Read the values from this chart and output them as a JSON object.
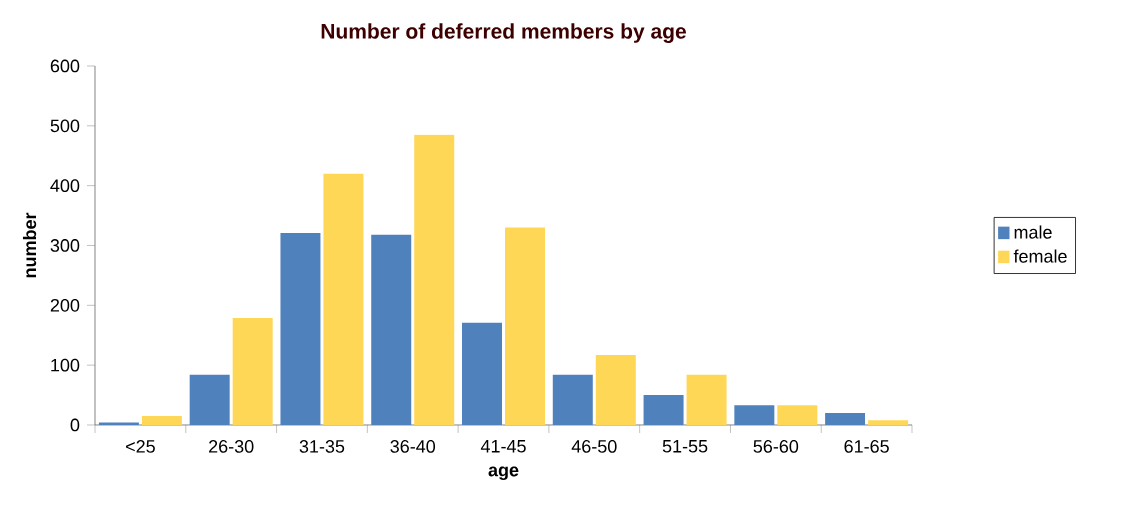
{
  "chart_data": {
    "type": "bar",
    "title": "Number of deferred members by age",
    "xlabel": "age",
    "ylabel": "number",
    "categories": [
      "<25",
      "26-30",
      "31-35",
      "36-40",
      "41-45",
      "46-50",
      "51-55",
      "56-60",
      "61-65"
    ],
    "series": [
      {
        "name": "male",
        "color": "#4f81bd",
        "values": [
          4,
          84,
          321,
          318,
          171,
          84,
          50,
          33,
          20
        ]
      },
      {
        "name": "female",
        "color": "#ffd757",
        "values": [
          15,
          179,
          420,
          485,
          330,
          117,
          84,
          33,
          8
        ]
      }
    ],
    "ylim": [
      0,
      600
    ],
    "yticks": [
      0,
      100,
      200,
      300,
      400,
      500,
      600
    ],
    "grid": false,
    "legend": "right"
  }
}
